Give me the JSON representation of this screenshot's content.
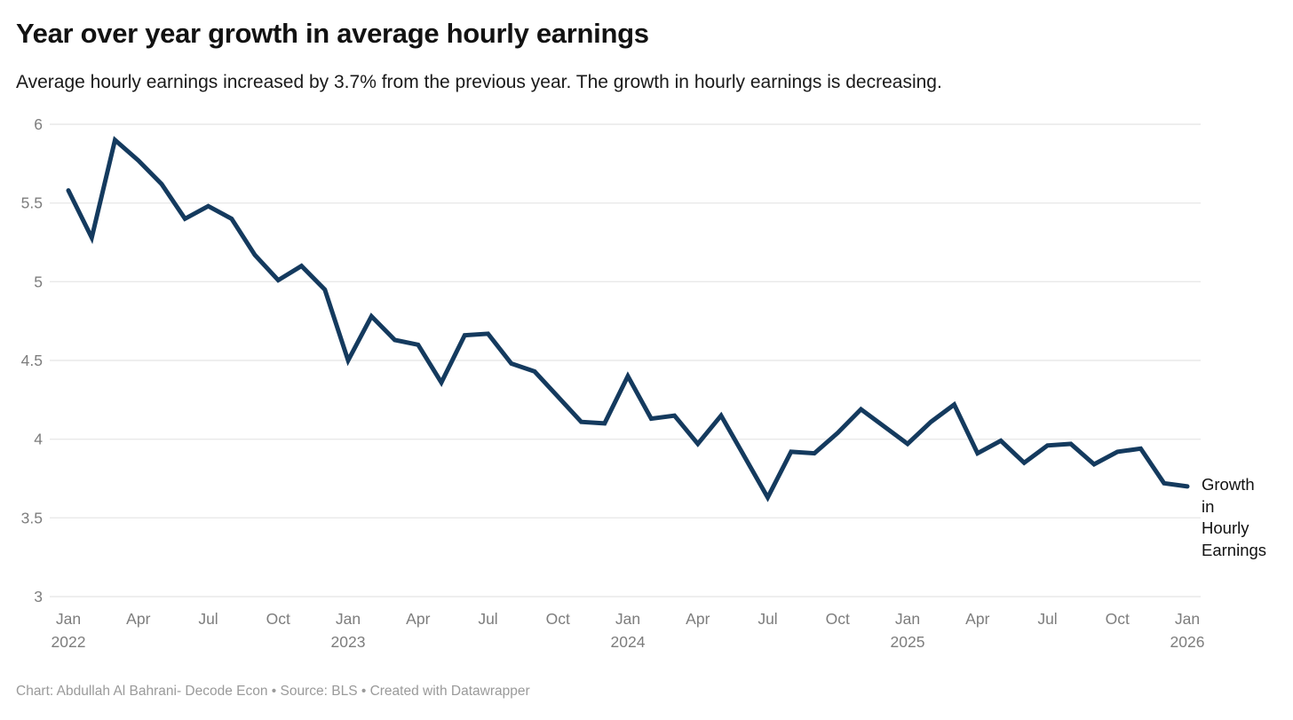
{
  "header": {
    "title": "Year over year growth in average hourly earnings",
    "description": "Average hourly earnings increased by 3.7% from the previous year. The growth in hourly earnings is decreasing."
  },
  "series": {
    "name": "Growth in Hourly Earnings",
    "label_lines": [
      "Growth",
      "in",
      "Hourly",
      "Earnings"
    ]
  },
  "footer": {
    "text": "Chart: Abdullah Al Bahrani- Decode Econ • Source: BLS • Created with Datawrapper"
  },
  "colors": {
    "line": "#143A5E",
    "grid": "#E9E9E9",
    "axis_text": "#7D7D7D",
    "title_text": "#121212",
    "body_text": "#1A1A1A",
    "footer_text": "#9A9A9A",
    "series_label_text": "#111111",
    "background": "#FFFFFF"
  },
  "chart_data": {
    "type": "line",
    "title": "Year over year growth in average hourly earnings",
    "xlabel": "",
    "ylabel": "",
    "ylim": [
      3,
      6
    ],
    "grid": "horizontal-only",
    "legend_position": "right-of-last-point",
    "series_name": "Growth in Hourly Earnings",
    "y_ticks": {
      "values": [
        3,
        3.5,
        4,
        4.5,
        5,
        5.5,
        6
      ],
      "labels": [
        "3",
        "3.5",
        "4",
        "4.5",
        "5",
        "5.5",
        "6"
      ]
    },
    "x": [
      "Jan 2022",
      "Feb 2022",
      "Mar 2022",
      "Apr 2022",
      "May 2022",
      "Jun 2022",
      "Jul 2022",
      "Aug 2022",
      "Sep 2022",
      "Oct 2022",
      "Nov 2022",
      "Dec 2022",
      "Jan 2023",
      "Feb 2023",
      "Mar 2023",
      "Apr 2023",
      "May 2023",
      "Jun 2023",
      "Jul 2023",
      "Aug 2023",
      "Sep 2023",
      "Oct 2023",
      "Nov 2023",
      "Dec 2023",
      "Jan 2024",
      "Feb 2024",
      "Mar 2024",
      "Apr 2024",
      "May 2024",
      "Jun 2024",
      "Jul 2024",
      "Aug 2024",
      "Sep 2024",
      "Oct 2024",
      "Nov 2024",
      "Dec 2024",
      "Jan 2025",
      "Feb 2025",
      "Mar 2025",
      "Apr 2025",
      "May 2025",
      "Jun 2025",
      "Jul 2025",
      "Aug 2025",
      "Sep 2025",
      "Oct 2025",
      "Nov 2025",
      "Dec 2025",
      "Jan 2026"
    ],
    "values": [
      5.58,
      5.28,
      5.9,
      5.77,
      5.62,
      5.4,
      5.48,
      5.4,
      5.17,
      5.01,
      5.1,
      4.95,
      4.5,
      4.78,
      4.63,
      4.6,
      4.36,
      4.66,
      4.67,
      4.48,
      4.43,
      4.27,
      4.11,
      4.1,
      4.4,
      4.13,
      4.15,
      3.97,
      4.15,
      3.89,
      3.63,
      3.92,
      3.91,
      4.04,
      4.19,
      4.08,
      3.97,
      4.11,
      4.22,
      3.91,
      3.99,
      3.85,
      3.96,
      3.97,
      3.84,
      3.92,
      3.94,
      3.72,
      3.7
    ],
    "x_ticks": [
      {
        "index": 0,
        "label": "Jan",
        "year": "2022"
      },
      {
        "index": 3,
        "label": "Apr"
      },
      {
        "index": 6,
        "label": "Jul"
      },
      {
        "index": 9,
        "label": "Oct"
      },
      {
        "index": 12,
        "label": "Jan",
        "year": "2023"
      },
      {
        "index": 15,
        "label": "Apr"
      },
      {
        "index": 18,
        "label": "Jul"
      },
      {
        "index": 21,
        "label": "Oct"
      },
      {
        "index": 24,
        "label": "Jan",
        "year": "2024"
      },
      {
        "index": 27,
        "label": "Apr"
      },
      {
        "index": 30,
        "label": "Jul"
      },
      {
        "index": 33,
        "label": "Oct"
      },
      {
        "index": 36,
        "label": "Jan",
        "year": "2025"
      },
      {
        "index": 39,
        "label": "Apr"
      },
      {
        "index": 42,
        "label": "Jul"
      },
      {
        "index": 45,
        "label": "Oct"
      },
      {
        "index": 48,
        "label": "Jan",
        "year": "2026"
      }
    ]
  }
}
